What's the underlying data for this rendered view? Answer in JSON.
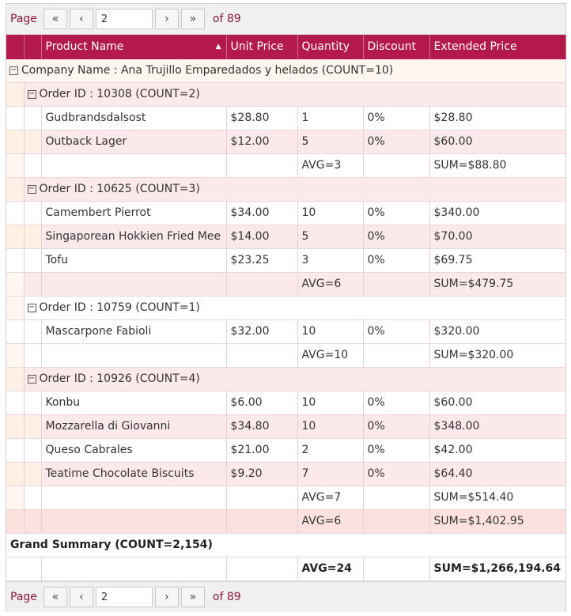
{
  "pager": {
    "page_label": "Page",
    "current_page": "2",
    "of_label": "of 89",
    "first_icon": "«",
    "prev_icon": "‹",
    "next_icon": "›",
    "last_icon": "»"
  },
  "columns": {
    "product_name": "Product Name",
    "unit_price": "Unit Price",
    "quantity": "Quantity",
    "discount": "Discount",
    "extended_price": "Extended Price"
  },
  "company": {
    "header": "Company Name : Ana Trujillo Emparedados y helados (COUNT=10)",
    "summary": {
      "quantity": "AVG=6",
      "extended": "SUM=$1,402.95"
    }
  },
  "orders": [
    {
      "header": "Order ID : 10308 (COUNT=2)",
      "rows": [
        {
          "product": "Gudbrandsdalsost",
          "price": "$28.80",
          "qty": "1",
          "discount": "0%",
          "extended": "$28.80"
        },
        {
          "product": "Outback Lager",
          "price": "$12.00",
          "qty": "5",
          "discount": "0%",
          "extended": "$60.00"
        }
      ],
      "summary": {
        "quantity": "AVG=3",
        "extended": "SUM=$88.80"
      }
    },
    {
      "header": "Order ID : 10625 (COUNT=3)",
      "rows": [
        {
          "product": "Camembert Pierrot",
          "price": "$34.00",
          "qty": "10",
          "discount": "0%",
          "extended": "$340.00"
        },
        {
          "product": "Singaporean Hokkien Fried Mee",
          "price": "$14.00",
          "qty": "5",
          "discount": "0%",
          "extended": "$70.00"
        },
        {
          "product": "Tofu",
          "price": "$23.25",
          "qty": "3",
          "discount": "0%",
          "extended": "$69.75"
        }
      ],
      "summary": {
        "quantity": "AVG=6",
        "extended": "SUM=$479.75"
      }
    },
    {
      "header": "Order ID : 10759 (COUNT=1)",
      "rows": [
        {
          "product": "Mascarpone Fabioli",
          "price": "$32.00",
          "qty": "10",
          "discount": "0%",
          "extended": "$320.00"
        }
      ],
      "summary": {
        "quantity": "AVG=10",
        "extended": "SUM=$320.00"
      }
    },
    {
      "header": "Order ID : 10926 (COUNT=4)",
      "rows": [
        {
          "product": "Konbu",
          "price": "$6.00",
          "qty": "10",
          "discount": "0%",
          "extended": "$60.00"
        },
        {
          "product": "Mozzarella di Giovanni",
          "price": "$34.80",
          "qty": "10",
          "discount": "0%",
          "extended": "$348.00"
        },
        {
          "product": "Queso Cabrales",
          "price": "$21.00",
          "qty": "2",
          "discount": "0%",
          "extended": "$42.00"
        },
        {
          "product": "Teatime Chocolate Biscuits",
          "price": "$9.20",
          "qty": "7",
          "discount": "0%",
          "extended": "$64.40"
        }
      ],
      "summary": {
        "quantity": "AVG=7",
        "extended": "SUM=$514.40"
      }
    }
  ],
  "grand": {
    "header": "Grand Summary (COUNT=2,154)",
    "quantity": "AVG=24",
    "extended": "SUM=$1,266,194.64"
  },
  "icons": {
    "collapse": "⊟",
    "sort_asc": "▲"
  }
}
